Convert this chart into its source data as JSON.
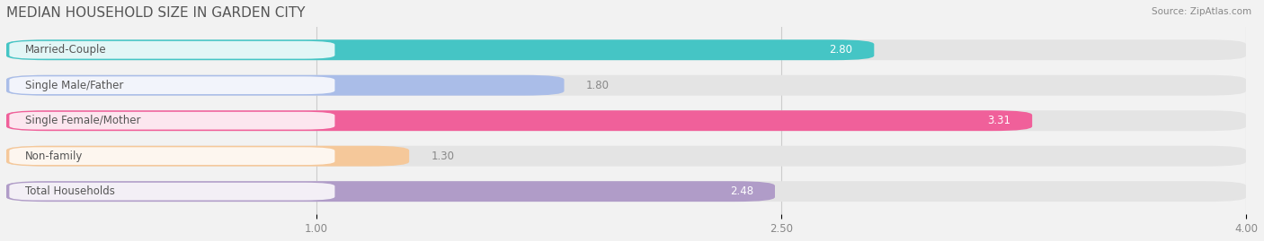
{
  "title": "MEDIAN HOUSEHOLD SIZE IN GARDEN CITY",
  "source": "Source: ZipAtlas.com",
  "categories": [
    "Married-Couple",
    "Single Male/Father",
    "Single Female/Mother",
    "Non-family",
    "Total Households"
  ],
  "values": [
    2.8,
    1.8,
    3.31,
    1.3,
    2.48
  ],
  "bar_colors": [
    "#45C5C5",
    "#AABDE8",
    "#F0609A",
    "#F5C89A",
    "#B09CC8"
  ],
  "label_bg_color": "#ffffff",
  "background_color": "#f2f2f2",
  "bar_bg_color": "#e4e4e4",
  "xmin": 0.0,
  "xmax": 4.0,
  "xticks": [
    1.0,
    2.5,
    4.0
  ],
  "title_fontsize": 11,
  "label_fontsize": 8.5,
  "value_fontsize": 8.5,
  "tick_fontsize": 8.5,
  "bar_height": 0.58,
  "label_colors": [
    "#555555",
    "#555555",
    "#555555",
    "#555555",
    "#555555"
  ],
  "value_inside_colors": [
    "#ffffff",
    "#555555",
    "#ffffff",
    "#555555",
    "#555555"
  ],
  "value_inside_threshold": 0.6
}
